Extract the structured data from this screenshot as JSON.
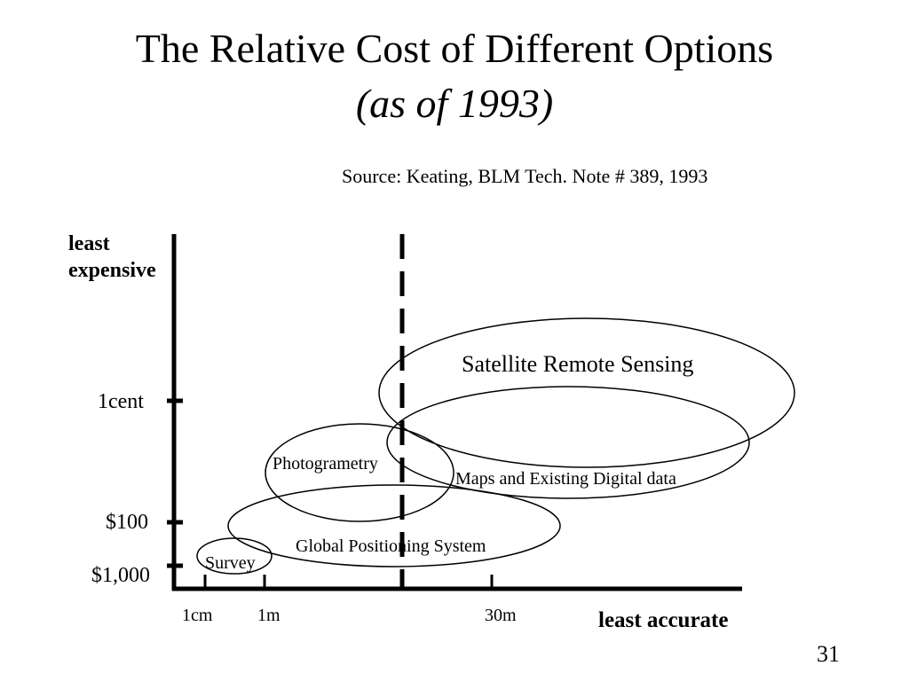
{
  "slide": {
    "title": "The Relative Cost of Different Options",
    "subtitle": "(as of 1993)",
    "source": "Source: Keating, BLM Tech. Note # 389, 1993",
    "page_number": "31"
  },
  "axes": {
    "y_top_label_line1": "least",
    "y_top_label_line2": "expensive",
    "y_ticks": [
      "1cent",
      "$100",
      "$1,000"
    ],
    "x_ticks": [
      "1cm",
      "1m",
      "30m"
    ],
    "x_end_label": "least accurate"
  },
  "regions": {
    "satellite": "Satellite Remote Sensing",
    "maps": "Maps and Existing Digital data",
    "photogrammetry": "Photogrametry",
    "gps": "Global Positioning System",
    "survey": "Survey"
  }
}
